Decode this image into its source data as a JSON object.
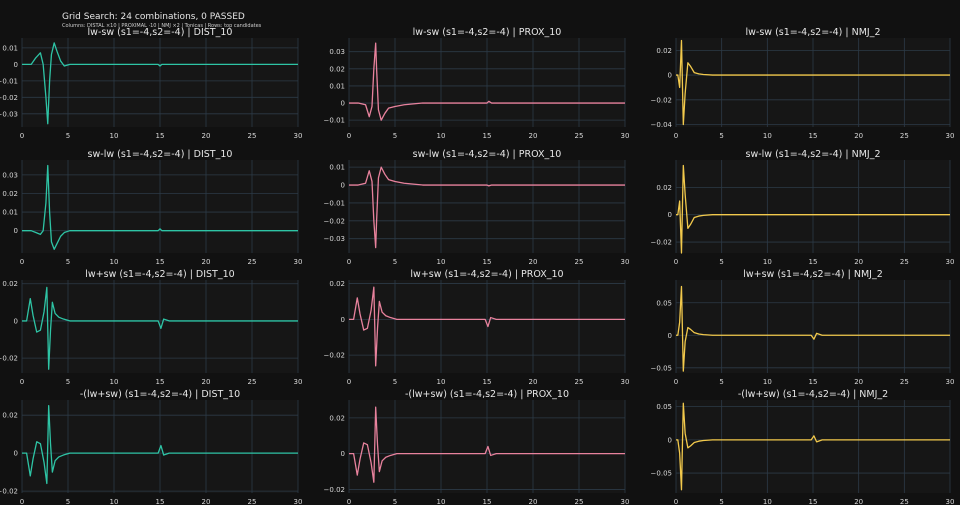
{
  "figure": {
    "title": "Grid Search: 24 combinations, 0 PASSED",
    "subtitle": "Columns: DISTAL ×10 | PROXIMAL ·10 | NMJ ×2 | Tonicas | Rows: top candidates",
    "background": "#111111",
    "plot_background": "#161616",
    "grid_color": "#2c3a47"
  },
  "chart_data": [
    {
      "type": "line",
      "title": "lw-sw (s1=-4,s2=-4) | DIST_10",
      "color": "#2ec4a5",
      "xlim": [
        0,
        30
      ],
      "ylim": [
        -0.038,
        0.016
      ],
      "x_ticks": [
        0,
        5,
        10,
        15,
        20,
        25,
        30
      ],
      "y_ticks": [
        0.01,
        0,
        -0.01,
        -0.02,
        -0.03
      ],
      "y_tick_labels": [
        "0.01",
        "0",
        "−0.01",
        "−0.02",
        "−0.03"
      ],
      "x": [
        0,
        1,
        1.5,
        2,
        2.3,
        2.6,
        2.8,
        3.0,
        3.2,
        3.5,
        3.8,
        4.2,
        4.6,
        5.2,
        6,
        8,
        10,
        14.8,
        15,
        15.2,
        16,
        20,
        25,
        30
      ],
      "y": [
        0,
        0,
        0.004,
        0.007,
        0,
        -0.02,
        -0.036,
        -0.01,
        0.006,
        0.013,
        0.008,
        0.002,
        -0.001,
        0,
        0,
        0,
        0,
        0,
        -0.001,
        0,
        0,
        0,
        0,
        0
      ]
    },
    {
      "type": "line",
      "title": "lw-sw (s1=-4,s2=-4) | PROX_10",
      "color": "#e8829d",
      "xlim": [
        0,
        30
      ],
      "ylim": [
        -0.014,
        0.038
      ],
      "x_ticks": [
        0,
        5,
        10,
        15,
        20,
        25,
        30
      ],
      "y_ticks": [
        0.03,
        0.02,
        0.01,
        0,
        -0.01
      ],
      "y_tick_labels": [
        "0.03",
        "0.02",
        "0.01",
        "0",
        "−0.01"
      ],
      "x": [
        0,
        1,
        1.8,
        2.2,
        2.5,
        2.7,
        2.9,
        3.0,
        3.2,
        3.5,
        3.9,
        4.3,
        5,
        6,
        8,
        10,
        15,
        15.2,
        15.5,
        20,
        25,
        30
      ],
      "y": [
        0,
        0,
        -0.001,
        -0.008,
        -0.002,
        0.02,
        0.035,
        0.02,
        -0.004,
        -0.01,
        -0.006,
        -0.003,
        -0.002,
        -0.001,
        0,
        0,
        0,
        0.001,
        0,
        0,
        0,
        0
      ]
    },
    {
      "type": "line",
      "title": "lw-sw (s1=-4,s2=-4) | NMJ_2",
      "color": "#f2c94c",
      "xlim": [
        0,
        30
      ],
      "ylim": [
        -0.042,
        0.03
      ],
      "x_ticks": [
        0,
        5,
        10,
        15,
        20,
        25,
        30
      ],
      "y_ticks": [
        0.02,
        0,
        -0.02,
        -0.04
      ],
      "y_tick_labels": [
        "0.02",
        "0",
        "−0.02",
        "−0.04"
      ],
      "x": [
        0,
        0.2,
        0.4,
        0.6,
        0.8,
        1.0,
        1.3,
        1.6,
        2.0,
        2.5,
        3,
        4,
        6,
        10,
        15,
        20,
        25,
        30
      ],
      "y": [
        0,
        0,
        -0.01,
        0.028,
        -0.04,
        -0.015,
        0.01,
        0.007,
        0.002,
        0.001,
        0.0005,
        0,
        0,
        0,
        0,
        0,
        0,
        0
      ]
    },
    {
      "type": "line",
      "title": "sw-lw (s1=-4,s2=-4) | DIST_10",
      "color": "#2ec4a5",
      "xlim": [
        0,
        30
      ],
      "ylim": [
        -0.012,
        0.038
      ],
      "x_ticks": [
        0,
        5,
        10,
        15,
        20,
        25,
        30
      ],
      "y_ticks": [
        0.03,
        0.02,
        0.01,
        0
      ],
      "y_tick_labels": [
        "0.03",
        "0.02",
        "0.01",
        "0"
      ],
      "x": [
        0,
        1,
        1.5,
        2,
        2.3,
        2.6,
        2.8,
        3.0,
        3.2,
        3.5,
        3.8,
        4.2,
        4.6,
        5.2,
        6,
        8,
        10,
        14.8,
        15,
        15.2,
        16,
        20,
        25,
        30
      ],
      "y": [
        0,
        0,
        -0.001,
        -0.002,
        0,
        0.015,
        0.035,
        0.01,
        -0.006,
        -0.01,
        -0.007,
        -0.003,
        -0.001,
        0,
        0,
        0,
        0,
        0,
        0.001,
        0,
        0,
        0,
        0,
        0
      ]
    },
    {
      "type": "line",
      "title": "sw-lw (s1=-4,s2=-4) | PROX_10",
      "color": "#e8829d",
      "xlim": [
        0,
        30
      ],
      "ylim": [
        -0.038,
        0.014
      ],
      "x_ticks": [
        0,
        5,
        10,
        15,
        20,
        25,
        30
      ],
      "y_ticks": [
        0.01,
        0,
        -0.01,
        -0.02,
        -0.03
      ],
      "y_tick_labels": [
        "0.01",
        "0",
        "−0.01",
        "−0.02",
        "−0.03"
      ],
      "x": [
        0,
        1,
        1.8,
        2.2,
        2.5,
        2.7,
        2.9,
        3.0,
        3.2,
        3.5,
        3.9,
        4.3,
        5,
        6,
        8,
        10,
        15,
        15.2,
        15.5,
        20,
        25,
        30
      ],
      "y": [
        0,
        0,
        0.001,
        0.008,
        0.002,
        -0.02,
        -0.035,
        -0.02,
        0.004,
        0.01,
        0.006,
        0.003,
        0.002,
        0.001,
        0,
        0,
        0,
        -0.0005,
        0,
        0,
        0,
        0
      ]
    },
    {
      "type": "line",
      "title": "sw-lw (s1=-4,s2=-4) | NMJ_2",
      "color": "#f2c94c",
      "xlim": [
        0,
        30
      ],
      "ylim": [
        -0.028,
        0.04
      ],
      "x_ticks": [
        0,
        5,
        10,
        15,
        20,
        25,
        30
      ],
      "y_ticks": [
        0.02,
        0,
        -0.02
      ],
      "y_tick_labels": [
        "0.02",
        "0",
        "−0.02"
      ],
      "x": [
        0,
        0.2,
        0.4,
        0.6,
        0.8,
        1.0,
        1.3,
        1.6,
        2.0,
        2.5,
        3,
        4,
        6,
        10,
        15,
        20,
        25,
        30
      ],
      "y": [
        0,
        0,
        0.01,
        -0.028,
        0.036,
        0.015,
        -0.01,
        -0.007,
        -0.002,
        -0.001,
        -0.0005,
        0,
        0,
        0,
        0,
        0,
        0,
        0
      ]
    },
    {
      "type": "line",
      "title": "lw+sw (s1=-4,s2=-4) | DIST_10",
      "color": "#2ec4a5",
      "xlim": [
        0,
        30
      ],
      "ylim": [
        -0.028,
        0.022
      ],
      "x_ticks": [
        0,
        5,
        10,
        15,
        20,
        25,
        30
      ],
      "y_ticks": [
        0.02,
        0,
        -0.02
      ],
      "y_tick_labels": [
        "0.02",
        "0",
        "−0.02"
      ],
      "x": [
        0,
        0.5,
        0.9,
        1.2,
        1.6,
        2.0,
        2.4,
        2.7,
        2.9,
        3.1,
        3.3,
        3.6,
        4.0,
        4.5,
        5.2,
        6,
        8,
        14.8,
        15.1,
        15.4,
        16,
        20,
        25,
        30
      ],
      "y": [
        0,
        0,
        0.012,
        0.003,
        -0.006,
        -0.005,
        0.005,
        0.018,
        -0.026,
        -0.005,
        0.01,
        0.004,
        0.002,
        0.001,
        0,
        0,
        0,
        0,
        -0.004,
        0.001,
        0,
        0,
        0,
        0
      ]
    },
    {
      "type": "line",
      "title": "lw+sw (s1=-4,s2=-4) | PROX_10",
      "color": "#e8829d",
      "xlim": [
        0,
        30
      ],
      "ylim": [
        -0.03,
        0.022
      ],
      "x_ticks": [
        0,
        5,
        10,
        15,
        20,
        25,
        30
      ],
      "y_ticks": [
        0.02,
        0,
        -0.02
      ],
      "y_tick_labels": [
        "0.02",
        "0",
        "−0.02"
      ],
      "x": [
        0,
        0.5,
        0.9,
        1.2,
        1.6,
        2.0,
        2.4,
        2.7,
        2.9,
        3.1,
        3.3,
        3.6,
        4.0,
        4.5,
        5.2,
        6,
        8,
        14.8,
        15.1,
        15.4,
        16,
        20,
        25,
        30
      ],
      "y": [
        0,
        0,
        0.012,
        0.003,
        -0.006,
        -0.005,
        0.005,
        0.018,
        -0.026,
        -0.005,
        0.01,
        0.004,
        0.002,
        0.001,
        0,
        0,
        0,
        0,
        -0.004,
        0.001,
        0,
        0,
        0,
        0
      ]
    },
    {
      "type": "line",
      "title": "lw+sw (s1=-4,s2=-4) | NMJ_2",
      "color": "#f2c94c",
      "xlim": [
        0,
        30
      ],
      "ylim": [
        -0.058,
        0.085
      ],
      "x_ticks": [
        0,
        5,
        10,
        15,
        20,
        25,
        30
      ],
      "y_ticks": [
        0.05,
        0,
        -0.05
      ],
      "y_tick_labels": [
        "0.05",
        "0",
        "−0.05"
      ],
      "x": [
        0,
        0.2,
        0.4,
        0.6,
        0.8,
        1.0,
        1.3,
        1.6,
        2.0,
        2.5,
        3,
        4,
        6,
        10,
        14.8,
        15.1,
        15.4,
        16,
        20,
        25,
        30
      ],
      "y": [
        0,
        0,
        0.02,
        0.075,
        -0.055,
        -0.01,
        0.012,
        0.009,
        0.004,
        0.002,
        0.001,
        0,
        0,
        0,
        0,
        -0.006,
        0.003,
        0,
        0,
        0,
        0
      ]
    },
    {
      "type": "line",
      "title": "-(lw+sw) (s1=-4,s2=-4) | DIST_10",
      "color": "#2ec4a5",
      "xlim": [
        0,
        30
      ],
      "ylim": [
        -0.021,
        0.028
      ],
      "x_ticks": [
        0,
        5,
        10,
        15,
        20,
        25,
        30
      ],
      "y_ticks": [
        0.02,
        0,
        -0.02
      ],
      "y_tick_labels": [
        "0.02",
        "0",
        "−0.02"
      ],
      "x": [
        0,
        0.5,
        0.9,
        1.2,
        1.6,
        2.0,
        2.4,
        2.7,
        2.9,
        3.1,
        3.3,
        3.6,
        4.0,
        4.5,
        5.2,
        6,
        8,
        14.8,
        15.1,
        15.4,
        16,
        20,
        25,
        30
      ],
      "y": [
        0,
        0,
        -0.012,
        -0.003,
        0.006,
        0.005,
        -0.005,
        -0.016,
        0.025,
        0.005,
        -0.01,
        -0.004,
        -0.002,
        -0.001,
        0,
        0,
        0,
        0,
        0.004,
        -0.001,
        0,
        0,
        0,
        0
      ]
    },
    {
      "type": "line",
      "title": "-(lw+sw) (s1=-4,s2=-4) | PROX_10",
      "color": "#e8829d",
      "xlim": [
        0,
        30
      ],
      "ylim": [
        -0.022,
        0.03
      ],
      "x_ticks": [
        0,
        5,
        10,
        15,
        20,
        25,
        30
      ],
      "y_ticks": [
        0.02,
        0,
        -0.02
      ],
      "y_tick_labels": [
        "0.02",
        "0",
        "−0.02"
      ],
      "x": [
        0,
        0.5,
        0.9,
        1.2,
        1.6,
        2.0,
        2.4,
        2.7,
        2.9,
        3.1,
        3.3,
        3.6,
        4.0,
        4.5,
        5.2,
        6,
        8,
        14.8,
        15.1,
        15.4,
        16,
        20,
        25,
        30
      ],
      "y": [
        0,
        0,
        -0.012,
        -0.003,
        0.006,
        0.005,
        -0.005,
        -0.016,
        0.026,
        0.005,
        -0.01,
        -0.004,
        -0.002,
        -0.001,
        0,
        0,
        0,
        0,
        0.004,
        -0.001,
        0,
        0,
        0,
        0
      ]
    },
    {
      "type": "line",
      "title": "-(lw+sw) (s1=-4,s2=-4) | NMJ_2",
      "color": "#f2c94c",
      "xlim": [
        0,
        30
      ],
      "ylim": [
        -0.08,
        0.06
      ],
      "x_ticks": [
        0,
        5,
        10,
        15,
        20,
        25,
        30
      ],
      "y_ticks": [
        0.05,
        0,
        -0.05
      ],
      "y_tick_labels": [
        "0.05",
        "0",
        "−0.05"
      ],
      "x": [
        0,
        0.2,
        0.4,
        0.6,
        0.8,
        1.0,
        1.3,
        1.6,
        2.0,
        2.5,
        3,
        4,
        6,
        10,
        14.8,
        15.1,
        15.4,
        16,
        20,
        25,
        30
      ],
      "y": [
        0,
        0,
        -0.02,
        -0.075,
        0.055,
        0.01,
        -0.012,
        -0.009,
        -0.004,
        -0.002,
        -0.001,
        0,
        0,
        0,
        0,
        0.006,
        -0.003,
        0,
        0,
        0,
        0
      ]
    }
  ]
}
